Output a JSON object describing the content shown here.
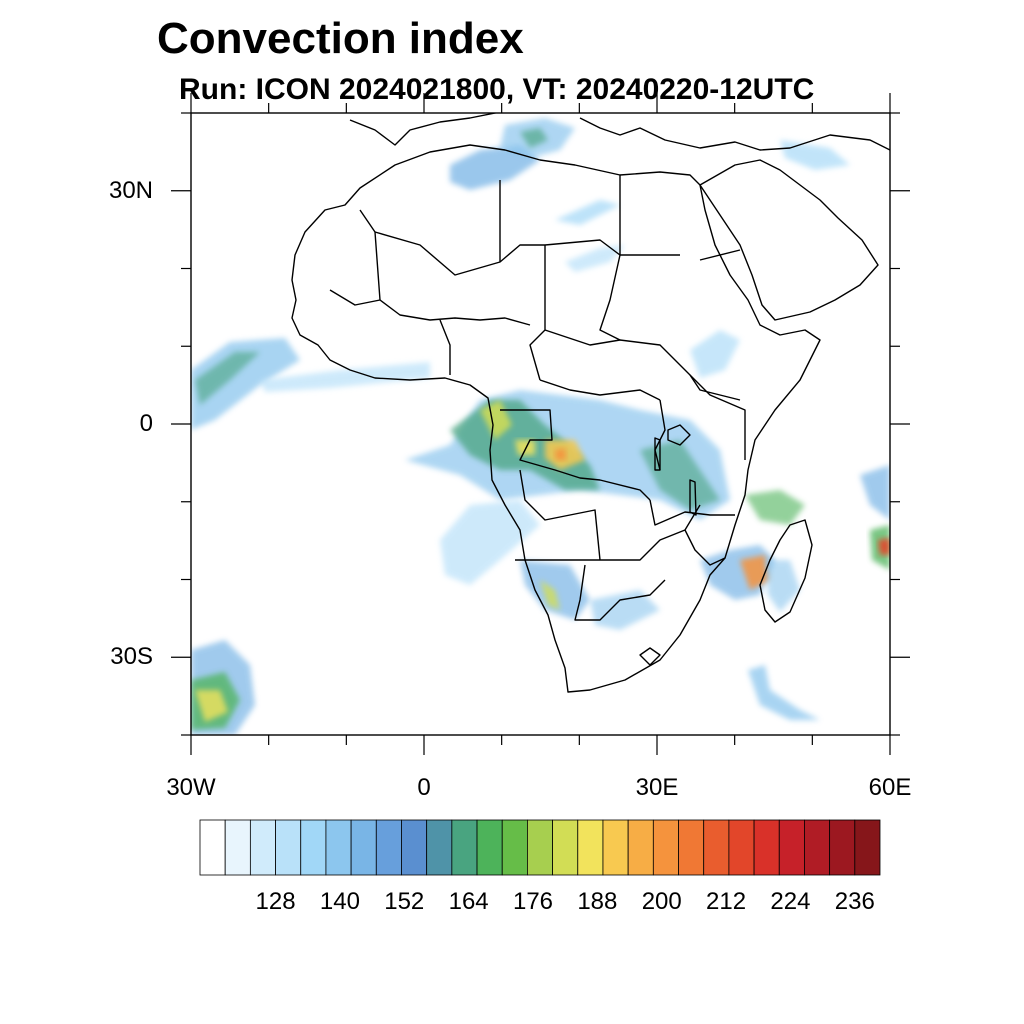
{
  "title": "Convection index",
  "subtitle": "Run: ICON 2024021800,  VT: 20240220-12UTC",
  "map": {
    "lon_range": [
      -30,
      60
    ],
    "lat_range": [
      -40,
      40
    ],
    "lat_ticks": [
      {
        "value": 30,
        "label": "30N"
      },
      {
        "value": 0,
        "label": "0"
      },
      {
        "value": -30,
        "label": "30S"
      }
    ],
    "lon_ticks": [
      {
        "value": -30,
        "label": "30W"
      },
      {
        "value": 0,
        "label": "0"
      },
      {
        "value": 30,
        "label": "30E"
      },
      {
        "value": 60,
        "label": "60E"
      }
    ]
  },
  "colorbar": {
    "colors": [
      "#ffffff",
      "#e8f5fd",
      "#d0ebfb",
      "#b9e1f9",
      "#a1d7f7",
      "#8cc6ee",
      "#79b5e6",
      "#679fdc",
      "#5a8fd0",
      "#4f93a8",
      "#49a480",
      "#4db35a",
      "#66bd48",
      "#a7cf4f",
      "#d2dd55",
      "#f2e35c",
      "#f8c950",
      "#f7ad45",
      "#f5933d",
      "#f07834",
      "#e95d2e",
      "#e2462a",
      "#d93129",
      "#c62129",
      "#b01c25",
      "#9c1820",
      "#86161a"
    ],
    "labels": [
      "128",
      "140",
      "152",
      "164",
      "176",
      "188",
      "200",
      "212",
      "224",
      "236"
    ]
  }
}
